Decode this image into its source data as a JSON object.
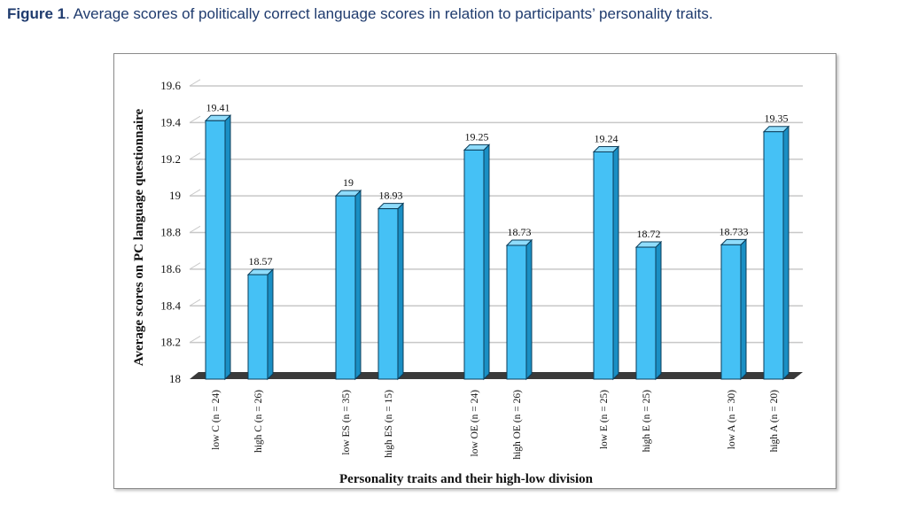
{
  "caption": {
    "label": "Figure 1",
    "text": ". Average scores of politically correct language scores in relation to participants’ personality traits."
  },
  "chart_data": {
    "type": "bar",
    "title": "",
    "xlabel": "Personality traits and their high-low division",
    "ylabel": "Average scores on PC language questionnaire",
    "ylim": [
      18,
      19.6
    ],
    "yticks": [
      "18",
      "18.2",
      "18.4",
      "18.6",
      "18.8",
      "19",
      "19.2",
      "19.4",
      "19.6"
    ],
    "grid": true,
    "groups": [
      {
        "categories": [
          "low  C  (n = 24)",
          "high C  (n = 26)"
        ],
        "values": [
          19.41,
          18.57
        ],
        "labels": [
          "19.41",
          "18.57"
        ]
      },
      {
        "categories": [
          "low ES  (n = 35)",
          "high ES  (n = 15)"
        ],
        "values": [
          19,
          18.93
        ],
        "labels": [
          "19",
          "18.93"
        ]
      },
      {
        "categories": [
          "low OE  (n = 24)",
          "high OE  (n = 26)"
        ],
        "values": [
          19.25,
          18.73
        ],
        "labels": [
          "19.25",
          "18.73"
        ]
      },
      {
        "categories": [
          "low E  (n = 25)",
          "high E  (n = 25)"
        ],
        "values": [
          19.24,
          18.72
        ],
        "labels": [
          "19.24",
          "18.72"
        ]
      },
      {
        "categories": [
          "low A  (n = 30)",
          "high A  (n = 20)"
        ],
        "values": [
          18.733,
          19.35
        ],
        "labels": [
          "18.733",
          "19.35"
        ]
      }
    ],
    "colors": {
      "bar_front": "#45c1f5",
      "bar_side": "#1a8fc4",
      "bar_top": "#8fdcfb",
      "floor": "#3a3a3a",
      "grid": "#c8c8c8"
    }
  }
}
